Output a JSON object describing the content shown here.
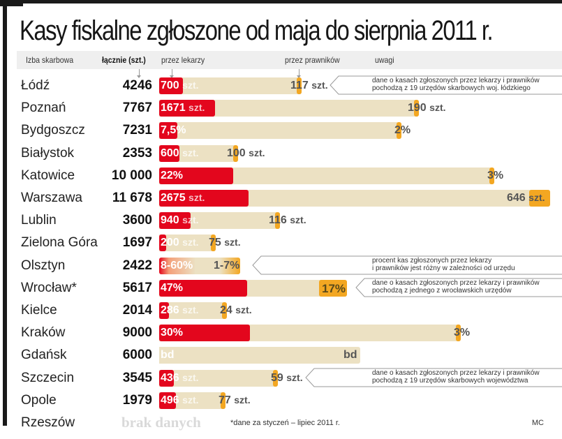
{
  "title": "Kasy fiskalne zgłoszone od maja do sierpnia 2011 r.",
  "header": {
    "col_office": "Izba skarbowa",
    "col_total": "łącznie (szt.)",
    "col_doctors": "przez lekarzy",
    "col_lawyers": "przez prawników",
    "col_notes": "uwagi"
  },
  "colors": {
    "doctors": "#e3061d",
    "lawyers": "#f3a722",
    "total_bar": "#ece1c3",
    "no_data": "#d9d9d9"
  },
  "chart_data": {
    "type": "bar",
    "title": "Kasy fiskalne zgłoszone od maja do sierpnia 2011 r.",
    "xlabel": "",
    "ylabel": "",
    "series_names": [
      "łącznie (szt.)",
      "przez lekarzy",
      "przez prawników"
    ],
    "rows": [
      {
        "city": "Łódź",
        "total": 4246,
        "total_label": "4246",
        "doctors_label": "700",
        "doctors_unit": "szt.",
        "doctors_share": 0.165,
        "lawyers_label": "117",
        "lawyers_unit": "szt.",
        "lawyers_share": 0.028,
        "note": [
          "dane o kasach zgłoszonych przez lekarzy i prawników",
          "pochodzą z 19 urzędów skarbowych woj. łódzkiego"
        ]
      },
      {
        "city": "Poznań",
        "total": 7767,
        "total_label": "7767",
        "doctors_label": "1671",
        "doctors_unit": "szt.",
        "doctors_share": 0.215,
        "lawyers_label": "190",
        "lawyers_unit": "szt.",
        "lawyers_share": 0.024
      },
      {
        "city": "Bydgoszcz",
        "total": 7231,
        "total_label": "7231",
        "doctors_label": "7,5%",
        "doctors_unit": "",
        "doctors_share": 0.075,
        "lawyers_label": "2%",
        "lawyers_unit": "",
        "lawyers_share": 0.02
      },
      {
        "city": "Białystok",
        "total": 2353,
        "total_label": "2353",
        "doctors_label": "600",
        "doctors_unit": "szt.",
        "doctors_share": 0.255,
        "lawyers_label": "100",
        "lawyers_unit": "szt.",
        "lawyers_share": 0.042
      },
      {
        "city": "Katowice",
        "total": 10000,
        "total_label": "10 000",
        "doctors_label": "22%",
        "doctors_unit": "",
        "doctors_share": 0.22,
        "lawyers_label": "3%",
        "lawyers_unit": "",
        "lawyers_share": 0.03
      },
      {
        "city": "Warszawa",
        "total": 11678,
        "total_label": "11 678",
        "doctors_label": "2675",
        "doctors_unit": "szt.",
        "doctors_share": 0.229,
        "lawyers_label": "646",
        "lawyers_unit": "szt.",
        "lawyers_share": 0.055
      },
      {
        "city": "Lublin",
        "total": 3600,
        "total_label": "3600",
        "doctors_label": "940",
        "doctors_unit": "szt.",
        "doctors_share": 0.261,
        "lawyers_label": "116",
        "lawyers_unit": "szt.",
        "lawyers_share": 0.032
      },
      {
        "city": "Zielona Góra",
        "total": 1697,
        "total_label": "1697",
        "doctors_label": "200",
        "doctors_unit": "szt.",
        "doctors_share": 0.118,
        "lawyers_label": "75",
        "lawyers_unit": "szt.",
        "lawyers_share": 0.044
      },
      {
        "city": "Olsztyn",
        "total": 2422,
        "total_label": "2422",
        "doctors_label": "8-60%",
        "doctors_unit": "",
        "doctors_share": null,
        "lawyers_label": "1-7%",
        "lawyers_unit": "",
        "lawyers_share": null,
        "gradient": true,
        "note": [
          "procent kas zgłoszonych przez lekarzy",
          "i prawników jest różny w zależności od urzędu"
        ]
      },
      {
        "city": "Wrocław*",
        "total": 5617,
        "total_label": "5617",
        "doctors_label": "47%",
        "doctors_unit": "",
        "doctors_share": 0.47,
        "lawyers_label": "17%",
        "lawyers_unit": "",
        "lawyers_share": 0.17,
        "note": [
          "dane o kasach zgłoszonych przez lekarzy i prawników",
          "pochodzą z jednego z wrocławskich urzędów"
        ]
      },
      {
        "city": "Kielce",
        "total": 2014,
        "total_label": "2014",
        "doctors_label": "286",
        "doctors_unit": "szt.",
        "doctors_share": 0.142,
        "lawyers_label": "24",
        "lawyers_unit": "szt.",
        "lawyers_share": 0.012
      },
      {
        "city": "Kraków",
        "total": 9000,
        "total_label": "9000",
        "doctors_label": "30%",
        "doctors_unit": "",
        "doctors_share": 0.3,
        "lawyers_label": "3%",
        "lawyers_unit": "",
        "lawyers_share": 0.03
      },
      {
        "city": "Gdańsk",
        "total": 6000,
        "total_label": "6000",
        "doctors_label": "bd",
        "doctors_unit": "",
        "doctors_share": null,
        "lawyers_label": "bd",
        "lawyers_unit": "",
        "lawyers_share": null
      },
      {
        "city": "Szczecin",
        "total": 3545,
        "total_label": "3545",
        "doctors_label": "436",
        "doctors_unit": "szt.",
        "doctors_share": 0.123,
        "lawyers_label": "59",
        "lawyers_unit": "szt.",
        "lawyers_share": 0.017,
        "note": [
          "dane o kasach zgłoszonych przez lekarzy i prawników",
          "pochodzą z 19 urzędów skarbowych województwa"
        ]
      },
      {
        "city": "Opole",
        "total": 1979,
        "total_label": "1979",
        "doctors_label": "496",
        "doctors_unit": "szt.",
        "doctors_share": 0.251,
        "lawyers_label": "77",
        "lawyers_unit": "szt.",
        "lawyers_share": 0.039
      },
      {
        "city": "Rzeszów",
        "total": null,
        "total_label": "",
        "no_data": "brak danych"
      }
    ]
  },
  "footnote": "*dane za styczeń – lipiec 2011 r.",
  "credit": "MC"
}
